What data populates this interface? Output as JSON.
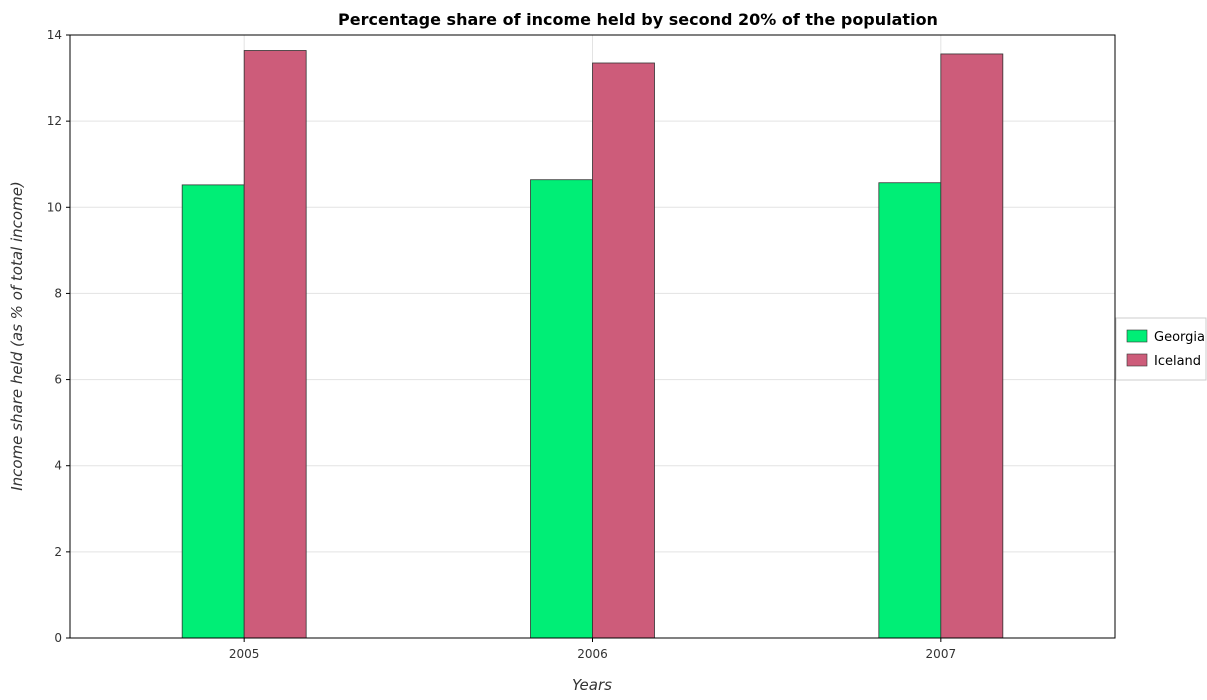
{
  "chart_data": {
    "type": "bar",
    "title": "Percentage share of income held by second 20% of the population",
    "xlabel": "Years",
    "ylabel": "Income share held (as % of total income)",
    "categories": [
      "2005",
      "2006",
      "2007"
    ],
    "series": [
      {
        "name": "Georgia",
        "values": [
          10.52,
          10.64,
          10.57
        ],
        "color": "#00ee76"
      },
      {
        "name": "Iceland",
        "values": [
          13.64,
          13.35,
          13.56
        ],
        "color": "#cd5c7a"
      }
    ],
    "ylim": [
      0,
      14
    ],
    "yticks": [
      0,
      2,
      4,
      6,
      8,
      10,
      12,
      14
    ],
    "grid": true,
    "legend_position": "right"
  }
}
